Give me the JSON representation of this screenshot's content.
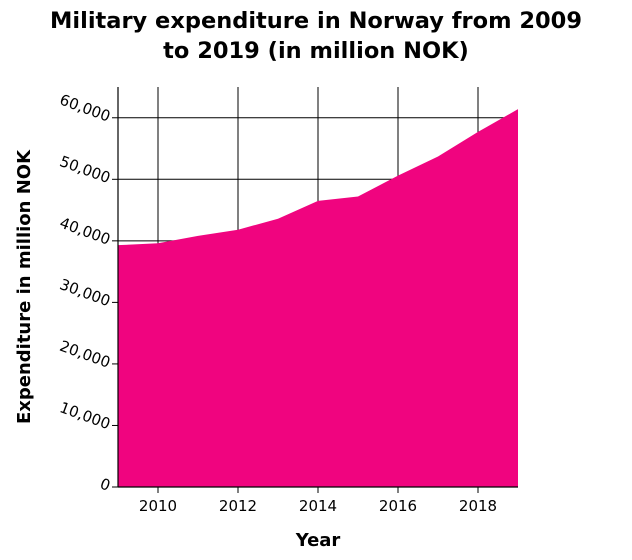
{
  "chart_data": {
    "type": "area",
    "title_lines": [
      "Military expenditure in Norway from 2009",
      "to 2019 (in million NOK)"
    ],
    "xlabel": "Year",
    "ylabel": "Expenditure in million NOK",
    "x": [
      2009,
      2010,
      2011,
      2012,
      2013,
      2014,
      2015,
      2016,
      2017,
      2018,
      2019
    ],
    "series": [
      {
        "values": [
          39300,
          39600,
          40800,
          41800,
          43600,
          46500,
          47200,
          50600,
          53700,
          57700,
          61400
        ]
      }
    ],
    "xlim": [
      2009,
      2019
    ],
    "ylim": [
      0,
      65000
    ],
    "x_ticks": [
      2010,
      2012,
      2014,
      2016,
      2018
    ],
    "x_tick_labels": [
      "2010",
      "2012",
      "2014",
      "2016",
      "2018"
    ],
    "y_ticks": [
      0,
      10000,
      20000,
      30000,
      40000,
      50000,
      60000
    ],
    "y_tick_labels": [
      "0",
      "10,000",
      "20,000",
      "30,000",
      "40,000",
      "50,000",
      "60,000"
    ],
    "grid": true,
    "colors": {
      "fill": "#f0047f",
      "grid": "#000000"
    }
  }
}
